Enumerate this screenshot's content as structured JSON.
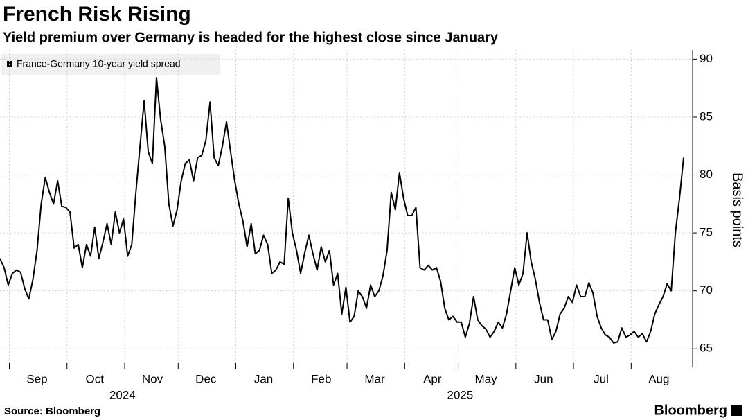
{
  "chart_data": {
    "type": "line",
    "title": "French Risk Rising",
    "subtitle": "Yield premium over Germany is headed for the highest close since January",
    "y_label": "Basis points",
    "source": "Source: Bloomberg",
    "logo": "Bloomberg",
    "x_group_labels": [
      "2024",
      "2025"
    ],
    "categories": [
      null,
      null,
      null,
      null,
      null,
      null,
      null,
      null,
      null,
      "Sep",
      null,
      null,
      null,
      null,
      null,
      null,
      null,
      null,
      null,
      null,
      null,
      null,
      null,
      "Oct",
      null,
      null,
      null,
      null,
      null,
      null,
      null,
      null,
      null,
      null,
      null,
      null,
      null,
      "Nov",
      null,
      null,
      null,
      null,
      null,
      null,
      null,
      null,
      null,
      null,
      null,
      null,
      "Dec",
      null,
      null,
      null,
      null,
      null,
      null,
      null,
      null,
      null,
      null,
      null,
      null,
      null,
      "Jan",
      null,
      null,
      null,
      null,
      null,
      null,
      null,
      null,
      null,
      null,
      null,
      null,
      null,
      "Feb",
      null,
      null,
      null,
      null,
      null,
      null,
      null,
      null,
      null,
      null,
      null,
      null,
      "Mar",
      null,
      null,
      null,
      null,
      null,
      null,
      null,
      null,
      null,
      null,
      null,
      null,
      null,
      "Apr",
      null,
      null,
      null,
      null,
      null,
      null,
      null,
      null,
      null,
      null,
      null,
      null,
      "May",
      null,
      null,
      null,
      null,
      null,
      null,
      null,
      null,
      null,
      null,
      null,
      null,
      null,
      "Jun",
      null,
      null,
      null,
      null,
      null,
      null,
      null,
      null,
      null,
      null,
      null,
      null,
      null,
      "Jul",
      null,
      null,
      null,
      null,
      null,
      null,
      null,
      null,
      null,
      null,
      null,
      null,
      null,
      "Aug",
      null,
      null,
      null,
      null,
      null,
      null
    ],
    "series": [
      {
        "name": "France-Germany 10-year yield spread",
        "color": "#000000",
        "values": [
          72.8,
          72.0,
          70.5,
          71.5,
          71.8,
          71.6,
          70.2,
          69.3,
          71.0,
          73.5,
          77.5,
          79.8,
          78.5,
          77.5,
          79.5,
          77.3,
          77.2,
          76.8,
          73.7,
          74.0,
          72.0,
          74.0,
          73.0,
          75.5,
          72.8,
          74.2,
          75.8,
          74.0,
          76.8,
          75.0,
          76.2,
          73.0,
          74.0,
          78.5,
          82.5,
          86.4,
          82.0,
          81.0,
          88.4,
          84.8,
          82.5,
          77.5,
          75.6,
          77.0,
          79.5,
          81.0,
          81.3,
          79.5,
          81.5,
          81.7,
          83.0,
          86.3,
          81.5,
          80.8,
          82.5,
          84.6,
          82.0,
          79.5,
          77.5,
          76.0,
          73.8,
          75.8,
          73.2,
          73.5,
          74.8,
          74.0,
          71.5,
          71.8,
          72.5,
          72.3,
          78.0,
          75.0,
          73.5,
          71.5,
          73.3,
          74.8,
          73.2,
          71.8,
          73.8,
          72.5,
          73.5,
          70.5,
          71.5,
          68.0,
          70.3,
          67.3,
          67.8,
          70.0,
          69.5,
          68.5,
          70.5,
          69.5,
          70.0,
          71.3,
          73.5,
          78.5,
          77.0,
          80.2,
          78.0,
          76.5,
          76.5,
          77.2,
          72.0,
          71.8,
          72.2,
          71.8,
          72.0,
          70.8,
          68.5,
          67.5,
          67.8,
          67.3,
          67.3,
          66.0,
          67.2,
          69.5,
          67.5,
          67.0,
          66.7,
          66.0,
          66.5,
          67.3,
          66.8,
          68.0,
          70.0,
          72.0,
          70.5,
          71.5,
          75.0,
          72.5,
          71.0,
          69.0,
          67.5,
          67.5,
          65.8,
          66.5,
          68.0,
          68.5,
          69.5,
          69.0,
          70.5,
          69.5,
          69.5,
          70.7,
          69.8,
          67.8,
          66.8,
          66.2,
          66.0,
          65.5,
          65.6,
          66.8,
          66.0,
          66.2,
          66.5,
          66.0,
          66.3,
          65.6,
          66.5,
          68.0,
          68.8,
          69.5,
          70.6,
          70.0,
          75.0,
          78.0,
          81.5
        ]
      }
    ],
    "ylim": [
      63.4,
      90.8
    ],
    "yticks": [
      65,
      70,
      75,
      80,
      85,
      90
    ],
    "grid": true
  }
}
